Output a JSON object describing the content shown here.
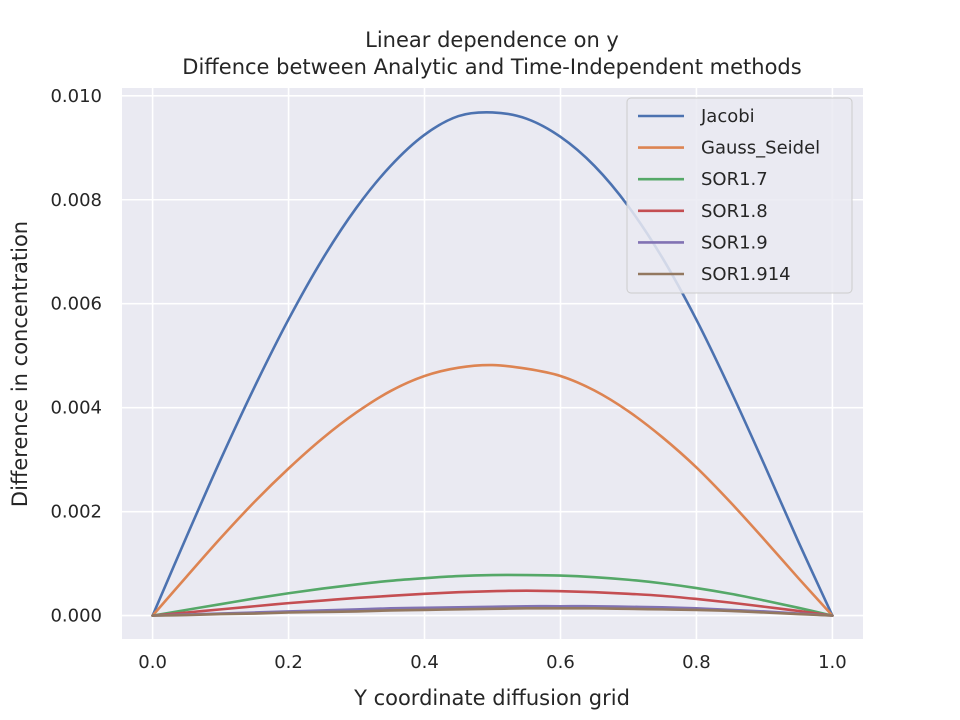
{
  "chart_data": {
    "type": "line",
    "title": [
      "Linear dependence on y",
      "Diffence between Analytic and Time-Independent methods"
    ],
    "xlabel": "Y coordinate diffusion grid",
    "ylabel": "Difference in concentration",
    "xlim": [
      -0.045,
      1.045
    ],
    "ylim": [
      -0.00045,
      0.01015
    ],
    "xticks": [
      0.0,
      0.2,
      0.4,
      0.6,
      0.8,
      1.0
    ],
    "xtick_labels": [
      "0.0",
      "0.2",
      "0.4",
      "0.6",
      "0.8",
      "1.0"
    ],
    "yticks": [
      0.0,
      0.002,
      0.004,
      0.006,
      0.008,
      0.01
    ],
    "ytick_labels": [
      "0.000",
      "0.002",
      "0.004",
      "0.006",
      "0.008",
      "0.010"
    ],
    "grid": true,
    "legend_position": "top-right",
    "background": "#eaeaf2",
    "series": [
      {
        "name": "Jacobi",
        "color": "#4c72b0",
        "x": [
          0.0,
          0.05,
          0.1,
          0.15,
          0.2,
          0.25,
          0.3,
          0.35,
          0.4,
          0.45,
          0.5,
          0.55,
          0.6,
          0.65,
          0.7,
          0.75,
          0.8,
          0.85,
          0.9,
          0.95,
          1.0
        ],
        "y": [
          0.0,
          0.00152,
          0.003,
          0.0044,
          0.0057,
          0.00686,
          0.00785,
          0.00865,
          0.00925,
          0.00961,
          0.00968,
          0.00956,
          0.00921,
          0.00865,
          0.00787,
          0.00688,
          0.00569,
          0.00434,
          0.0029,
          0.00142,
          0.0
        ]
      },
      {
        "name": "Gauss_Seidel",
        "color": "#dd8452",
        "x": [
          0.0,
          0.05,
          0.1,
          0.15,
          0.2,
          0.25,
          0.3,
          0.35,
          0.4,
          0.45,
          0.5,
          0.55,
          0.6,
          0.65,
          0.7,
          0.75,
          0.8,
          0.85,
          0.9,
          0.95,
          1.0
        ],
        "y": [
          0.0,
          0.00075,
          0.00149,
          0.00219,
          0.00283,
          0.00341,
          0.00391,
          0.00432,
          0.00461,
          0.00477,
          0.00482,
          0.00475,
          0.00461,
          0.00433,
          0.00393,
          0.00343,
          0.00285,
          0.00218,
          0.00146,
          0.00072,
          0.0
        ]
      },
      {
        "name": "SOR1.7",
        "color": "#55a868",
        "x": [
          0.0,
          0.05,
          0.1,
          0.15,
          0.2,
          0.25,
          0.3,
          0.35,
          0.4,
          0.45,
          0.5,
          0.55,
          0.6,
          0.65,
          0.7,
          0.75,
          0.8,
          0.85,
          0.9,
          0.95,
          1.0
        ],
        "y": [
          0.0,
          0.00011,
          0.00022,
          0.00033,
          0.00043,
          0.00052,
          0.0006,
          0.00067,
          0.00072,
          0.00076,
          0.00078,
          0.00078,
          0.00077,
          0.00074,
          0.00069,
          0.00062,
          0.00053,
          0.00042,
          0.00029,
          0.00015,
          0.0
        ]
      },
      {
        "name": "SOR1.8",
        "color": "#c44e52",
        "x": [
          0.0,
          0.05,
          0.1,
          0.15,
          0.2,
          0.25,
          0.3,
          0.35,
          0.4,
          0.45,
          0.5,
          0.55,
          0.6,
          0.65,
          0.7,
          0.75,
          0.8,
          0.85,
          0.9,
          0.95,
          1.0
        ],
        "y": [
          0.0,
          6e-05,
          0.00012,
          0.00018,
          0.00024,
          0.00029,
          0.00034,
          0.00038,
          0.00042,
          0.00045,
          0.00047,
          0.00048,
          0.00047,
          0.00045,
          0.00042,
          0.00038,
          0.00032,
          0.00025,
          0.00017,
          9e-05,
          0.0
        ]
      },
      {
        "name": "SOR1.9",
        "color": "#8172b3",
        "x": [
          0.0,
          0.05,
          0.1,
          0.15,
          0.2,
          0.25,
          0.3,
          0.35,
          0.4,
          0.45,
          0.5,
          0.55,
          0.6,
          0.65,
          0.7,
          0.75,
          0.8,
          0.85,
          0.9,
          0.95,
          1.0
        ],
        "y": [
          0.0,
          2e-05,
          4e-05,
          6e-05,
          8e-05,
          0.0001,
          0.00012,
          0.00014,
          0.00015,
          0.00016,
          0.00017,
          0.00018,
          0.00018,
          0.00018,
          0.00017,
          0.00016,
          0.00014,
          0.00011,
          8e-05,
          4e-05,
          0.0
        ]
      },
      {
        "name": "SOR1.914",
        "color": "#937860",
        "x": [
          0.0,
          0.05,
          0.1,
          0.15,
          0.2,
          0.25,
          0.3,
          0.35,
          0.4,
          0.45,
          0.5,
          0.55,
          0.6,
          0.65,
          0.7,
          0.75,
          0.8,
          0.85,
          0.9,
          0.95,
          1.0
        ],
        "y": [
          0.0,
          1e-05,
          3e-05,
          4e-05,
          6e-05,
          7e-05,
          8e-05,
          0.0001,
          0.00011,
          0.00012,
          0.00013,
          0.00014,
          0.00014,
          0.00014,
          0.00013,
          0.00012,
          0.00011,
          9e-05,
          6e-05,
          3e-05,
          0.0
        ]
      }
    ]
  }
}
